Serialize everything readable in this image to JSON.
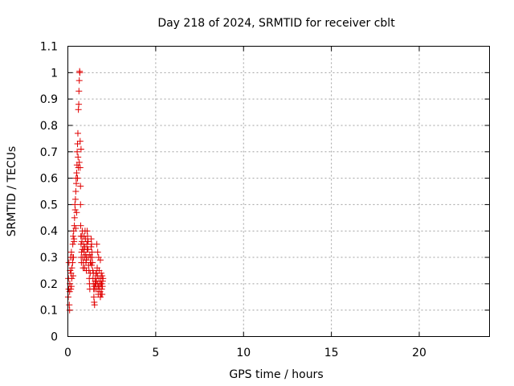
{
  "chart_data": {
    "type": "scatter",
    "title": "Day 218 of 2024, SRMTID for receiver cblt",
    "xlabel": "GPS time / hours",
    "ylabel": "SRMTID / TECUs",
    "xlim": [
      0,
      24
    ],
    "ylim": [
      0,
      1.1
    ],
    "xticks": [
      0,
      5,
      10,
      15,
      20
    ],
    "xtick_labels": [
      "0",
      "5",
      "10",
      "15",
      "20"
    ],
    "yticks": [
      0,
      0.1,
      0.2,
      0.3,
      0.4,
      0.5,
      0.6,
      0.7,
      0.8,
      0.9,
      1,
      1.1
    ],
    "ytick_labels": [
      "0",
      "0.1",
      "0.2",
      "0.3",
      "0.4",
      "0.5",
      "0.6",
      "0.7",
      "0.8",
      "0.9",
      "1",
      "1.1"
    ],
    "grid": true,
    "marker": "+",
    "color": "#e00000",
    "series": [
      {
        "name": "cblt",
        "x": [
          0.02,
          0.03,
          0.05,
          0.06,
          0.08,
          0.1,
          0.11,
          0.13,
          0.15,
          0.17,
          0.18,
          0.2,
          0.22,
          0.23,
          0.25,
          0.27,
          0.28,
          0.3,
          0.32,
          0.33,
          0.35,
          0.37,
          0.38,
          0.4,
          0.42,
          0.43,
          0.45,
          0.47,
          0.48,
          0.5,
          0.52,
          0.53,
          0.55,
          0.57,
          0.58,
          0.6,
          0.62,
          0.63,
          0.65,
          0.67,
          0.68,
          0.7,
          0.7,
          0.72,
          0.72,
          0.73,
          0.74,
          0.75,
          0.76,
          0.77,
          0.78,
          0.8,
          0.82,
          0.83,
          0.85,
          0.87,
          0.88,
          0.9,
          0.92,
          0.93,
          0.95,
          0.97,
          0.98,
          1.0,
          1.02,
          1.03,
          1.05,
          1.07,
          1.08,
          1.1,
          1.12,
          1.13,
          1.15,
          1.17,
          1.18,
          1.2,
          1.22,
          1.23,
          1.25,
          1.27,
          1.28,
          1.3,
          1.32,
          1.33,
          1.35,
          1.37,
          1.38,
          1.4,
          1.42,
          1.43,
          1.45,
          1.47,
          1.48,
          1.5,
          1.52,
          1.53,
          1.55,
          1.57,
          1.58,
          1.6,
          1.62,
          1.63,
          1.65,
          1.67,
          1.68,
          1.7,
          1.72,
          1.73,
          1.75,
          1.77,
          1.78,
          1.8,
          1.82,
          1.83,
          1.85,
          1.87,
          1.88,
          1.9,
          1.92,
          1.93,
          1.95,
          1.97,
          1.98,
          2.0,
          0.1,
          0.2,
          0.3,
          0.45,
          0.55,
          0.6,
          0.65,
          0.8,
          0.9,
          1.05,
          1.15,
          1.25,
          1.35,
          1.45,
          1.55,
          1.65,
          1.75,
          1.85,
          1.95,
          0.35,
          0.5,
          0.75,
          0.95,
          1.1,
          1.3,
          1.5,
          1.7,
          1.9
        ],
        "y": [
          0.15,
          0.22,
          0.18,
          0.28,
          0.12,
          0.1,
          0.2,
          0.25,
          0.3,
          0.18,
          0.24,
          0.32,
          0.22,
          0.26,
          0.3,
          0.28,
          0.35,
          0.38,
          0.3,
          0.4,
          0.36,
          0.42,
          0.45,
          0.5,
          0.48,
          0.52,
          0.55,
          0.6,
          0.58,
          0.62,
          0.65,
          0.7,
          0.73,
          0.77,
          0.68,
          0.86,
          0.88,
          0.93,
          0.97,
          1.005,
          1.0,
          0.74,
          0.64,
          0.57,
          0.5,
          0.42,
          0.38,
          0.35,
          0.3,
          0.28,
          0.32,
          0.36,
          0.4,
          0.33,
          0.3,
          0.26,
          0.28,
          0.35,
          0.38,
          0.32,
          0.3,
          0.34,
          0.4,
          0.37,
          0.31,
          0.28,
          0.25,
          0.3,
          0.35,
          0.4,
          0.38,
          0.36,
          0.33,
          0.3,
          0.27,
          0.25,
          0.22,
          0.2,
          0.18,
          0.24,
          0.28,
          0.3,
          0.34,
          0.37,
          0.35,
          0.32,
          0.3,
          0.28,
          0.25,
          0.22,
          0.2,
          0.18,
          0.15,
          0.13,
          0.12,
          0.18,
          0.2,
          0.22,
          0.24,
          0.2,
          0.18,
          0.21,
          0.24,
          0.26,
          0.23,
          0.2,
          0.18,
          0.16,
          0.19,
          0.22,
          0.25,
          0.2,
          0.18,
          0.17,
          0.15,
          0.2,
          0.22,
          0.24,
          0.2,
          0.18,
          0.16,
          0.19,
          0.21,
          0.22,
          0.17,
          0.19,
          0.23,
          0.41,
          0.6,
          0.64,
          0.66,
          0.38,
          0.33,
          0.29,
          0.36,
          0.31,
          0.27,
          0.24,
          0.21,
          0.35,
          0.3,
          0.29,
          0.23,
          0.37,
          0.47,
          0.71,
          0.26,
          0.33,
          0.28,
          0.19,
          0.32,
          0.16
        ]
      }
    ]
  }
}
